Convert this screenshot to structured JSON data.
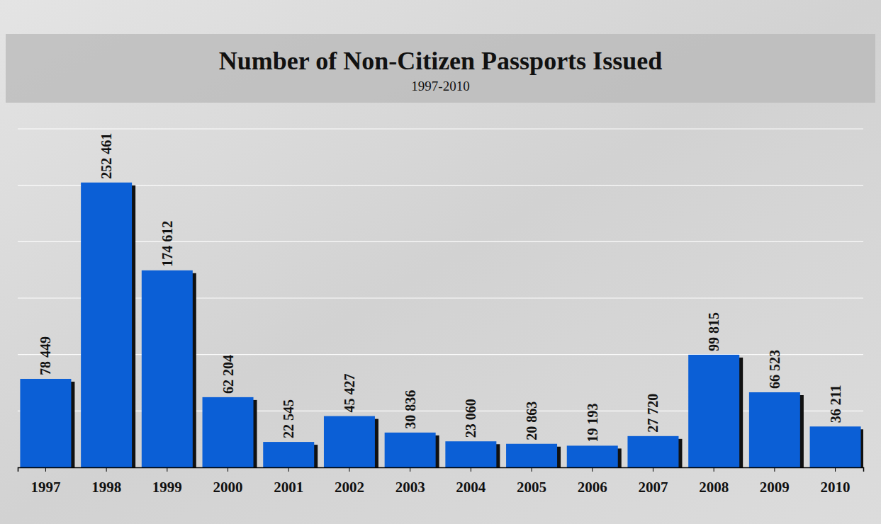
{
  "chart_data": {
    "type": "bar",
    "title": "Number of Non-Citizen Passports Issued",
    "subtitle": "1997-2010",
    "categories": [
      "1997",
      "1998",
      "1999",
      "2000",
      "2001",
      "2002",
      "2003",
      "2004",
      "2005",
      "2006",
      "2007",
      "2008",
      "2009",
      "2010"
    ],
    "values": [
      78449,
      252461,
      174612,
      62204,
      22545,
      45427,
      30836,
      23060,
      20863,
      19193,
      27720,
      99815,
      66523,
      36211
    ],
    "value_labels": [
      "78 449",
      "252 461",
      "174 612",
      "62 204",
      "22 545",
      "45 427",
      "30 836",
      "23 060",
      "20 863",
      "19 193",
      "27 720",
      "99 815",
      "66 523",
      "36 211"
    ],
    "color": "#0b5fd6",
    "ylim": [
      0,
      300000
    ],
    "yticks": [
      0,
      50000,
      100000,
      150000,
      200000,
      250000,
      300000
    ],
    "grid": true,
    "data_labels": true,
    "tick_labels": "x"
  }
}
